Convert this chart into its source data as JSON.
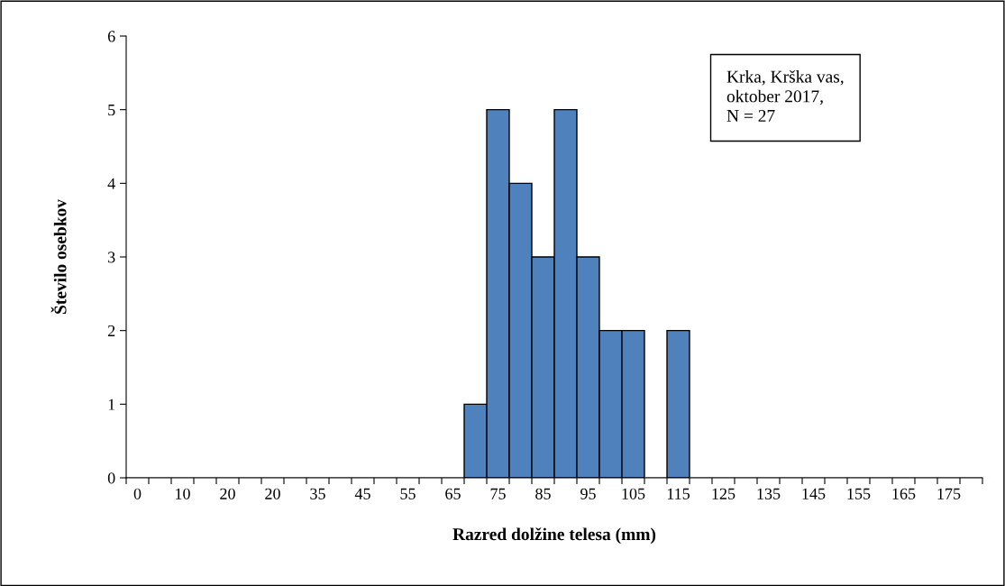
{
  "chart_data": {
    "type": "bar",
    "xlabel": "Razred dolžine telesa (mm)",
    "ylabel": "Število osebkov",
    "categories": [
      "0",
      null,
      "10",
      null,
      "20",
      null,
      "20",
      null,
      "35",
      null,
      "45",
      null,
      "55",
      null,
      "65",
      null,
      "75",
      null,
      "85",
      null,
      "95",
      null,
      "105",
      null,
      "115",
      null,
      "125",
      null,
      "135",
      null,
      "145",
      null,
      "155",
      null,
      "165",
      null,
      "175",
      null
    ],
    "values": [
      0,
      0,
      0,
      0,
      0,
      0,
      0,
      0,
      0,
      0,
      0,
      0,
      0,
      0,
      0,
      1,
      5,
      4,
      3,
      5,
      3,
      2,
      2,
      0,
      2,
      0,
      0,
      0,
      0,
      0,
      0,
      0,
      0,
      0,
      0,
      0,
      0,
      0
    ],
    "color": "#4f81bd",
    "ylim": [
      0,
      6
    ],
    "yticks": [
      0,
      1,
      2,
      3,
      4,
      5,
      6
    ],
    "grid": false,
    "annotations": [
      "Krka, Krška vas,\noktober 2017,\nN = 27"
    ]
  }
}
